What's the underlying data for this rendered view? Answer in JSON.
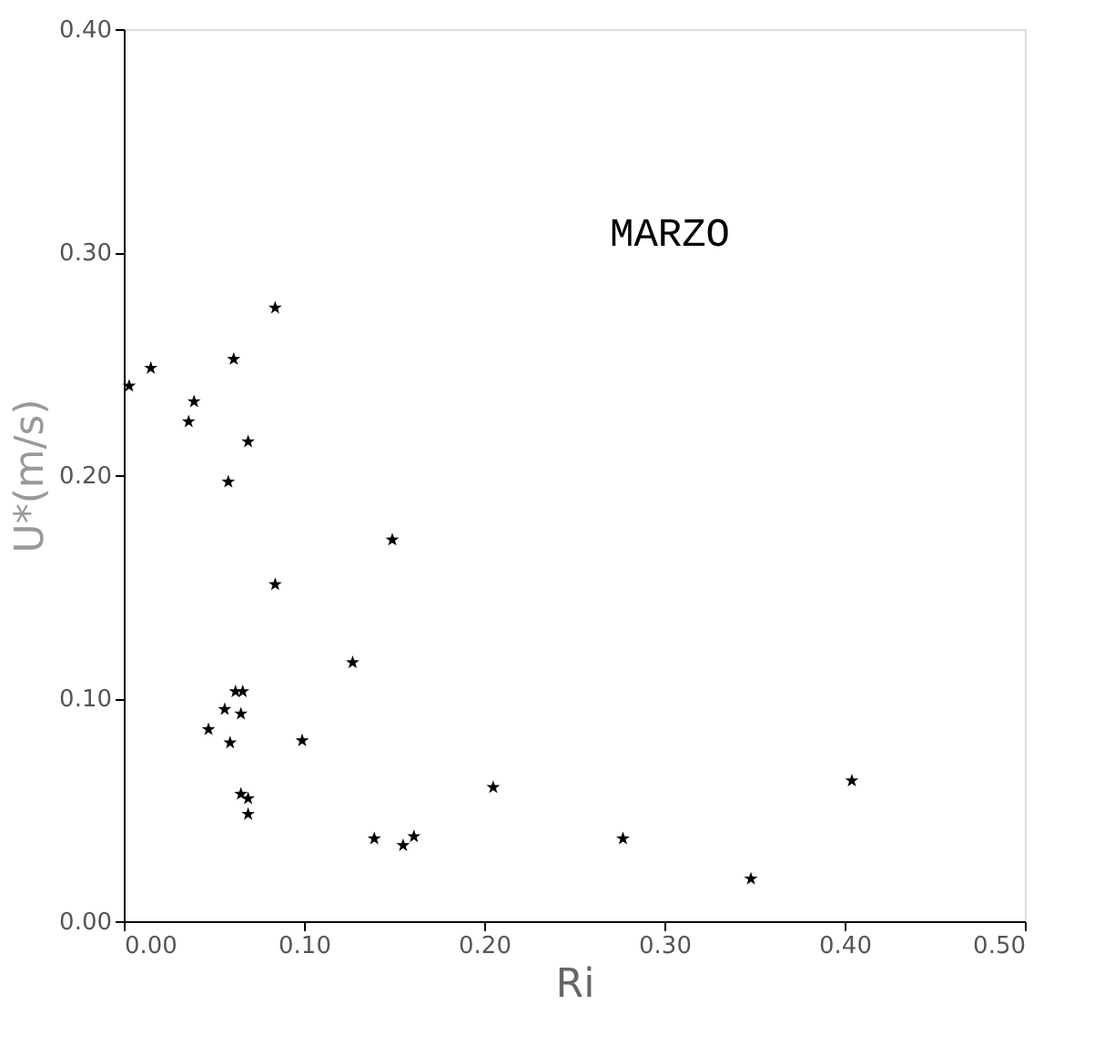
{
  "chart_data": {
    "type": "scatter",
    "xlabel": "Ri",
    "ylabel": "U*(m/s)",
    "annotations": [
      "MARZO"
    ],
    "x": [
      0.084,
      0.015,
      0.003,
      0.061,
      0.039,
      0.036,
      0.069,
      0.058,
      0.149,
      0.084,
      0.127,
      0.062,
      0.066,
      0.056,
      0.065,
      0.047,
      0.059,
      0.099,
      0.065,
      0.069,
      0.069,
      0.139,
      0.155,
      0.161,
      0.205,
      0.277,
      0.348,
      0.404
    ],
    "series": [
      {
        "color": "#000000",
        "values": [
          0.275,
          0.248,
          0.24,
          0.252,
          0.233,
          0.224,
          0.215,
          0.197,
          0.171,
          0.151,
          0.116,
          0.103,
          0.103,
          0.095,
          0.093,
          0.086,
          0.08,
          0.081,
          0.057,
          0.055,
          0.048,
          0.037,
          0.034,
          0.038,
          0.06,
          0.037,
          0.019,
          0.063
        ]
      }
    ],
    "xlim": [
      0,
      0.5
    ],
    "ylim": [
      0,
      0.4
    ],
    "xticks": [
      {
        "value": 0,
        "label": "0.00"
      },
      {
        "value": 0.1,
        "label": "0.10"
      },
      {
        "value": 0.2,
        "label": "0.20"
      },
      {
        "value": 0.3,
        "label": "0.30"
      },
      {
        "value": 0.4,
        "label": "0.40"
      },
      {
        "value": 0.5,
        "label": "0.50"
      }
    ],
    "yticks": [
      {
        "value": 0,
        "label": "0.00"
      },
      {
        "value": 0.1,
        "label": "0.10"
      },
      {
        "value": 0.2,
        "label": "0.20"
      },
      {
        "value": 0.3,
        "label": "0.30"
      },
      {
        "value": 0.4,
        "label": "0.40"
      }
    ],
    "grid": false,
    "marker": "star"
  }
}
